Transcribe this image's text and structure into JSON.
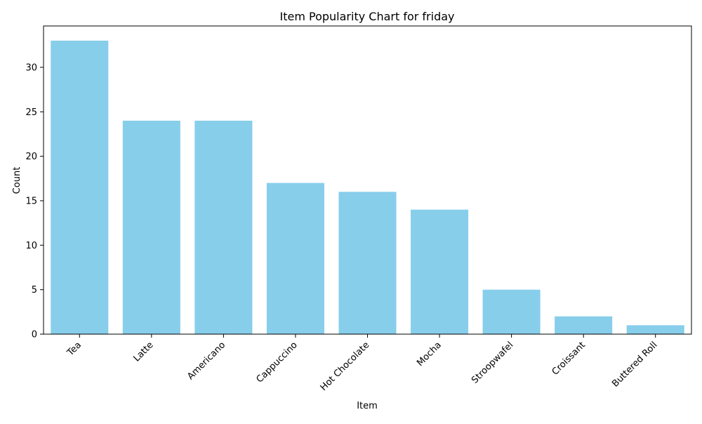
{
  "chart_data": {
    "type": "bar",
    "title": "Item Popularity Chart for friday",
    "xlabel": "Item",
    "ylabel": "Count",
    "categories": [
      "Tea",
      "Latte",
      "Americano",
      "Cappuccino",
      "Hot Chocolate",
      "Mocha",
      "Stroopwafel",
      "Croissant",
      "Buttered Roll"
    ],
    "values": [
      33,
      24,
      24,
      17,
      16,
      14,
      5,
      2,
      1
    ],
    "ylim": [
      0,
      34.65
    ],
    "yticks": [
      0,
      5,
      10,
      15,
      20,
      25,
      30
    ],
    "grid": false,
    "bar_color": "#87ceeb",
    "x_tick_rotation_deg": 45
  }
}
